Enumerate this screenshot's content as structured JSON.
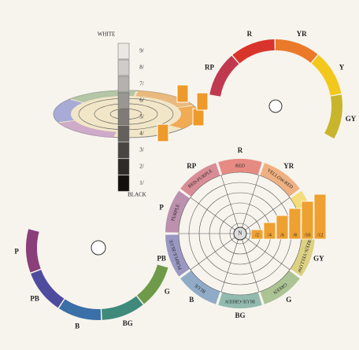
{
  "value_scale": {
    "top": "WHITE",
    "bottom": "BLACK",
    "steps": [
      "9/",
      "8/",
      "7/",
      "6/",
      "5/",
      "4/",
      "3/",
      "2/",
      "1/"
    ]
  },
  "upper_arc": [
    "RP",
    "R",
    "YR",
    "Y",
    "GY"
  ],
  "lower_arc": [
    "P",
    "PB",
    "B",
    "BG",
    "G"
  ],
  "wheel": {
    "center": "N",
    "hues": [
      {
        "code": "R",
        "name": "RED"
      },
      {
        "code": "YR",
        "name": "YELLOW-RED"
      },
      {
        "code": "Y",
        "name": "YELLOW"
      },
      {
        "code": "GY",
        "name": "GREEN-YELLOW"
      },
      {
        "code": "G",
        "name": "GREEN"
      },
      {
        "code": "BG",
        "name": "BLUE-GREEN"
      },
      {
        "code": "B",
        "name": "BLUE"
      },
      {
        "code": "PB",
        "name": "PURPLE-BLUE"
      },
      {
        "code": "P",
        "name": "PURPLE"
      },
      {
        "code": "RP",
        "name": "RED-PURPLE"
      }
    ],
    "chroma": [
      "/2",
      "/4",
      "/6",
      "/8",
      "/10",
      "/12"
    ]
  }
}
